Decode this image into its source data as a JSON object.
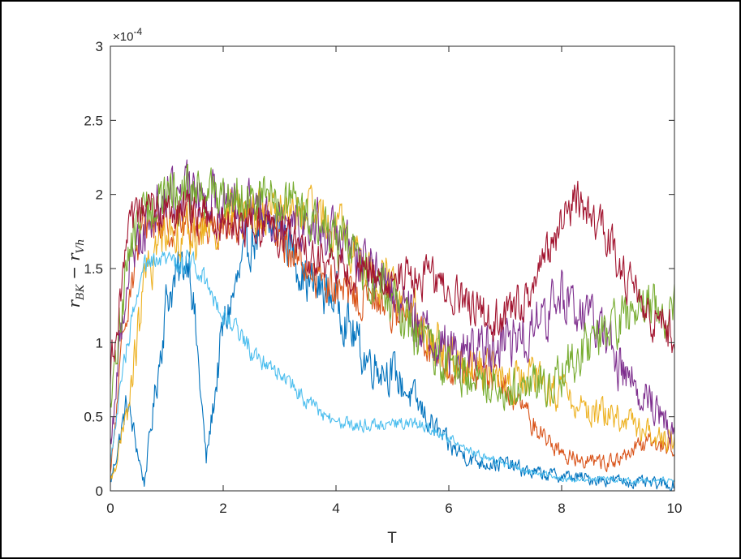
{
  "chart_data": {
    "type": "line",
    "xlabel": "T",
    "ylabel_main": "r",
    "ylabel_sub1": "BK",
    "ylabel_minus": "−",
    "ylabel_sub2": "Vh",
    "exponent_label": "×10",
    "exponent_power": "-4",
    "xlim": [
      0,
      10
    ],
    "ylim": [
      0,
      3
    ],
    "y_scale_note": "values shown in units of 1e-4",
    "x_ticks": [
      "0",
      "2",
      "4",
      "6",
      "8",
      "10"
    ],
    "y_ticks": [
      "0",
      "0.5",
      "1",
      "1.5",
      "2",
      "2.5",
      "3"
    ],
    "grid": false,
    "series": [
      {
        "color": "#0072BD",
        "x": [
          0,
          0.3,
          0.6,
          1.0,
          1.4,
          1.7,
          2.0,
          2.5,
          3.0,
          3.5,
          4.0,
          4.5,
          5.0,
          5.5,
          6.0,
          6.5,
          7.0,
          7.5,
          8.0,
          8.5,
          9.0,
          9.5,
          10
        ],
        "y": [
          0.05,
          0.6,
          0.05,
          1.3,
          1.6,
          0.2,
          1.1,
          1.7,
          1.8,
          1.4,
          1.3,
          0.9,
          0.8,
          0.55,
          0.3,
          0.2,
          0.18,
          0.12,
          0.1,
          0.08,
          0.07,
          0.05,
          0.04
        ],
        "amp": 0.25
      },
      {
        "color": "#D95319",
        "x": [
          0,
          0.3,
          0.6,
          1.0,
          1.5,
          2.0,
          2.5,
          3.0,
          3.5,
          4.0,
          4.5,
          5.0,
          5.5,
          6.0,
          6.5,
          7.0,
          7.5,
          8.0,
          8.5,
          9.0,
          9.5,
          10
        ],
        "y": [
          0.1,
          1.3,
          1.8,
          1.8,
          1.8,
          1.8,
          1.85,
          1.7,
          1.5,
          1.35,
          1.3,
          1.25,
          1.05,
          0.85,
          0.8,
          0.7,
          0.45,
          0.25,
          0.2,
          0.2,
          0.32,
          0.3
        ],
        "amp": 0.22
      },
      {
        "color": "#EDB120",
        "x": [
          0,
          0.3,
          0.6,
          1.0,
          1.5,
          2.0,
          2.5,
          3.0,
          3.5,
          4.0,
          4.5,
          5.0,
          5.5,
          6.0,
          6.5,
          7.0,
          7.5,
          8.0,
          8.5,
          9.0,
          9.5,
          10
        ],
        "y": [
          0.05,
          0.5,
          1.4,
          1.8,
          1.7,
          1.85,
          1.9,
          1.9,
          1.85,
          1.8,
          1.5,
          1.4,
          1.1,
          0.9,
          0.85,
          0.75,
          0.75,
          0.65,
          0.55,
          0.5,
          0.4,
          0.35
        ],
        "amp": 0.25
      },
      {
        "color": "#7E2F8E",
        "x": [
          0,
          0.3,
          0.6,
          1.0,
          1.5,
          2.0,
          2.5,
          3.0,
          3.5,
          4.0,
          4.5,
          5.0,
          5.5,
          6.0,
          6.5,
          7.0,
          7.5,
          8.0,
          8.5,
          9.0,
          9.5,
          10
        ],
        "y": [
          0.3,
          1.5,
          1.8,
          2.0,
          2.0,
          2.0,
          1.9,
          1.9,
          1.8,
          1.7,
          1.55,
          1.35,
          1.1,
          0.95,
          0.95,
          1.0,
          1.1,
          1.3,
          1.2,
          0.85,
          0.65,
          0.4
        ],
        "amp": 0.28
      },
      {
        "color": "#77AC30",
        "x": [
          0,
          0.3,
          0.6,
          1.0,
          1.5,
          2.0,
          2.5,
          3.0,
          3.5,
          4.0,
          4.5,
          5.0,
          5.5,
          6.0,
          6.5,
          7.0,
          7.5,
          8.0,
          8.5,
          9.0,
          9.5,
          10
        ],
        "y": [
          0.5,
          1.6,
          1.9,
          2.0,
          2.0,
          2.0,
          2.0,
          1.95,
          1.85,
          1.7,
          1.5,
          1.3,
          1.0,
          0.85,
          0.75,
          0.7,
          0.7,
          0.8,
          1.0,
          1.1,
          1.25,
          1.2
        ],
        "amp": 0.28
      },
      {
        "color": "#4DBEEE",
        "x": [
          0,
          0.3,
          0.6,
          1.0,
          1.5,
          2.0,
          2.5,
          3.0,
          3.5,
          4.0,
          4.5,
          5.0,
          5.5,
          6.0,
          6.5,
          7.0,
          7.5,
          8.0,
          8.5,
          9.0,
          9.5,
          10
        ],
        "y": [
          0.2,
          1.0,
          1.5,
          1.55,
          1.55,
          1.2,
          0.95,
          0.8,
          0.6,
          0.45,
          0.45,
          0.45,
          0.45,
          0.35,
          0.25,
          0.18,
          0.12,
          0.08,
          0.08,
          0.07,
          0.07,
          0.08
        ],
        "amp": 0.12
      },
      {
        "color": "#A2142F",
        "x": [
          0,
          0.3,
          0.6,
          1.0,
          1.5,
          2.0,
          2.5,
          3.0,
          3.5,
          4.0,
          4.5,
          5.0,
          5.5,
          6.0,
          6.5,
          7.0,
          7.5,
          8.0,
          8.2,
          8.5,
          9.0,
          9.5,
          10
        ],
        "y": [
          0.8,
          1.7,
          1.9,
          1.9,
          1.85,
          1.85,
          1.8,
          1.75,
          1.6,
          1.5,
          1.45,
          1.45,
          1.45,
          1.35,
          1.2,
          1.15,
          1.35,
          1.8,
          1.95,
          1.9,
          1.55,
          1.2,
          1.05
        ],
        "amp": 0.22
      }
    ]
  }
}
